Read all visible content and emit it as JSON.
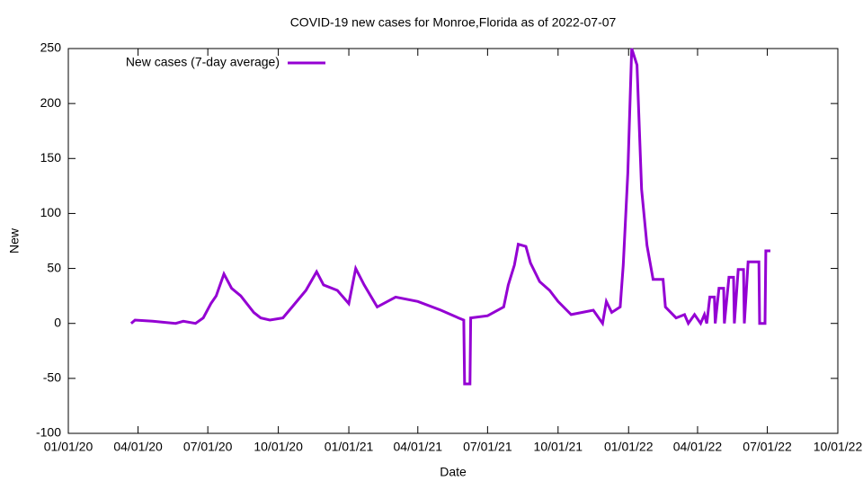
{
  "chart_data": {
    "type": "line",
    "title": "COVID-19 new cases for Monroe,Florida as of 2022-07-07",
    "x_label": "Date",
    "y_label": "New",
    "legend": "top-left",
    "xlim": [
      "2020-01-01",
      "2022-10-01"
    ],
    "xticks": [
      {
        "value": "2020-01-01",
        "label": "01/01/20"
      },
      {
        "value": "2020-04-01",
        "label": "04/01/20"
      },
      {
        "value": "2020-07-01",
        "label": "07/01/20"
      },
      {
        "value": "2020-10-01",
        "label": "10/01/20"
      },
      {
        "value": "2021-01-01",
        "label": "01/01/21"
      },
      {
        "value": "2021-04-01",
        "label": "04/01/21"
      },
      {
        "value": "2021-07-01",
        "label": "07/01/21"
      },
      {
        "value": "2021-10-01",
        "label": "10/01/21"
      },
      {
        "value": "2022-01-01",
        "label": "01/01/22"
      },
      {
        "value": "2022-04-01",
        "label": "04/01/22"
      },
      {
        "value": "2022-07-01",
        "label": "07/01/22"
      },
      {
        "value": "2022-10-01",
        "label": "10/01/22"
      }
    ],
    "ylim": [
      -100,
      250
    ],
    "yticks": [
      -100,
      -50,
      0,
      50,
      100,
      150,
      200,
      250
    ],
    "x": [
      "2020-03-23",
      "2020-03-28",
      "2020-04-20",
      "2020-05-20",
      "2020-05-30",
      "2020-06-15",
      "2020-06-25",
      "2020-07-05",
      "2020-07-12",
      "2020-07-22",
      "2020-08-01",
      "2020-08-13",
      "2020-08-30",
      "2020-09-08",
      "2020-09-20",
      "2020-10-07",
      "2020-10-19",
      "2020-11-06",
      "2020-11-20",
      "2020-11-29",
      "2020-12-17",
      "2021-01-01",
      "2021-01-10",
      "2021-01-21",
      "2021-02-07",
      "2021-03-03",
      "2021-04-01",
      "2021-05-01",
      "2021-05-24",
      "2021-05-31",
      "2021-06-01",
      "2021-06-08",
      "2021-06-09",
      "2021-07-01",
      "2021-07-22",
      "2021-07-28",
      "2021-08-05",
      "2021-08-10",
      "2021-08-20",
      "2021-08-26",
      "2021-09-07",
      "2021-09-20",
      "2021-10-01",
      "2021-10-18",
      "2021-11-16",
      "2021-11-28",
      "2021-12-03",
      "2021-12-10",
      "2021-12-21",
      "2021-12-25",
      "2021-12-31",
      "2022-01-05",
      "2022-01-12",
      "2022-01-18",
      "2022-01-25",
      "2022-02-02",
      "2022-02-15",
      "2022-02-18",
      "2022-03-04",
      "2022-03-15",
      "2022-03-20",
      "2022-03-28",
      "2022-04-05",
      "2022-04-10",
      "2022-04-13",
      "2022-04-17",
      "2022-04-23",
      "2022-04-24",
      "2022-04-29",
      "2022-05-05",
      "2022-05-06",
      "2022-05-12",
      "2022-05-18",
      "2022-05-19",
      "2022-05-24",
      "2022-05-31",
      "2022-06-01",
      "2022-06-06",
      "2022-06-20",
      "2022-06-21",
      "2022-06-28",
      "2022-06-29",
      "2022-07-05"
    ],
    "series": [
      {
        "name": "New cases (7-day average)",
        "color": "#9400d3",
        "values": [
          0,
          3,
          2,
          0,
          2,
          0,
          5,
          18,
          25,
          45,
          32,
          25,
          10,
          5,
          3,
          5,
          15,
          30,
          47,
          35,
          30,
          18,
          50,
          35,
          15,
          24,
          20,
          12,
          5,
          3,
          -55,
          -55,
          5,
          7,
          15,
          35,
          53,
          72,
          70,
          55,
          38,
          30,
          20,
          8,
          12,
          0,
          20,
          10,
          15,
          53,
          137,
          250,
          235,
          122,
          71,
          40,
          40,
          15,
          5,
          8,
          0,
          8,
          0,
          8,
          0,
          24,
          24,
          0,
          32,
          32,
          0,
          42,
          42,
          0,
          49,
          49,
          0,
          56,
          56,
          0,
          0,
          66,
          66
        ]
      }
    ]
  }
}
